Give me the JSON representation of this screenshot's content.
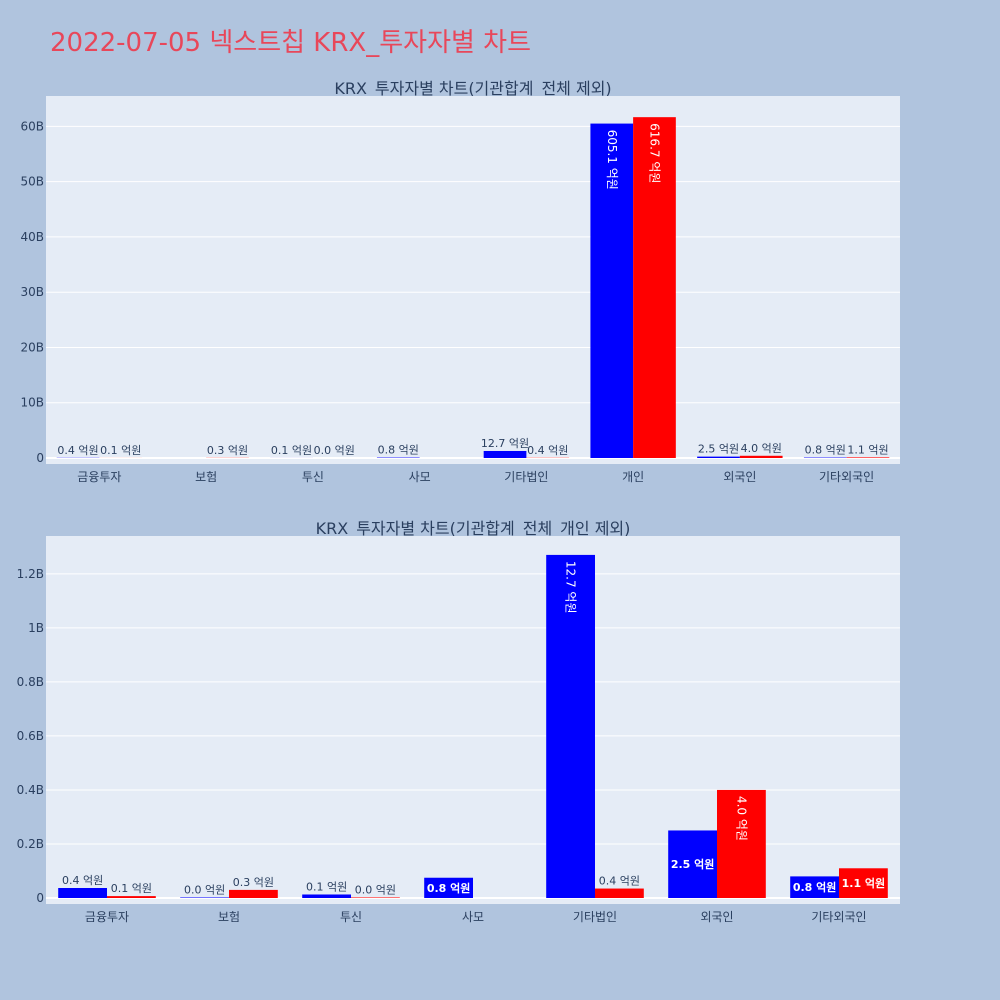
{
  "title": "2022-07-05 넥스트칩 KRX_투자자별 차트",
  "colors": {
    "buy": "#0000ff",
    "sell": "#ff0000",
    "plot_bg": "#e5ecf6",
    "page_bg": "#b0c4de",
    "title": "#e8475a"
  },
  "chart_data": [
    {
      "type": "bar",
      "title": "KRX_투자자별 차트(기관합계_전체 제외)",
      "categories": [
        "금융투자",
        "보험",
        "투신",
        "사모",
        "기타법인",
        "개인",
        "외국인",
        "기타외국인"
      ],
      "series": [
        {
          "values": [
            0.04,
            0,
            0.01,
            0.08,
            1.27,
            60.51,
            0.25,
            0.08
          ],
          "labels": [
            "0.4 억원",
            "",
            "0.1 억원",
            "0.8 억원",
            "12.7 억원",
            "605.1 억원",
            "2.5 억원",
            "0.8 억원"
          ]
        },
        {
          "values": [
            0.01,
            0.03,
            0.0,
            0,
            0.04,
            61.67,
            0.4,
            0.11
          ],
          "labels": [
            "0.1 억원",
            "0.3 억원",
            "0.0 억원",
            "",
            "0.4 억원",
            "616.7 억원",
            "4.0 억원",
            "1.1 억원"
          ]
        }
      ],
      "ylim": [
        0,
        65.5
      ],
      "yticks": [
        0,
        10,
        20,
        30,
        40,
        50,
        60
      ],
      "ytick_labels": [
        "0",
        "10B",
        "20B",
        "30B",
        "40B",
        "50B",
        "60B"
      ]
    },
    {
      "type": "bar",
      "title": "KRX_투자자별 차트(기관합계_전체_개인 제외)",
      "categories": [
        "금융투자",
        "보험",
        "투신",
        "사모",
        "기타법인",
        "외국인",
        "기타외국인"
      ],
      "series": [
        {
          "values": [
            0.037,
            0.002,
            0.013,
            0.075,
            1.27,
            0.25,
            0.08
          ],
          "labels": [
            "0.4 억원",
            "0.0 억원",
            "0.1 억원",
            "0.8 억원",
            "12.7 억원",
            "2.5 억원",
            "0.8 억원"
          ]
        },
        {
          "values": [
            0.007,
            0.03,
            0.002,
            0,
            0.035,
            0.4,
            0.11
          ],
          "labels": [
            "0.1 억원",
            "0.3 억원",
            "0.0 억원",
            "",
            "0.4 억원",
            "4.0 억원",
            "1.1 억원"
          ]
        }
      ],
      "ylim": [
        0,
        1.34
      ],
      "yticks": [
        0,
        0.2,
        0.4,
        0.6,
        0.8,
        1.0,
        1.2
      ],
      "ytick_labels": [
        "0",
        "0.2B",
        "0.4B",
        "0.6B",
        "0.8B",
        "1B",
        "1.2B"
      ]
    }
  ]
}
